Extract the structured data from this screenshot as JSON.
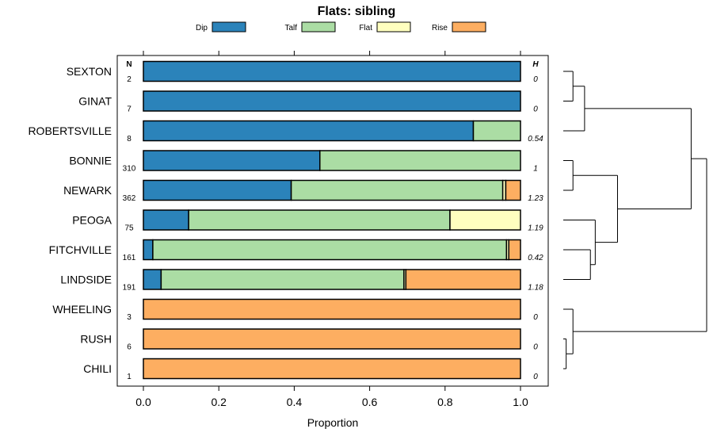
{
  "chart_data": {
    "type": "bar",
    "stacked": true,
    "orientation": "horizontal",
    "title": "Flats: sibling",
    "xlabel": "Proportion",
    "xlim": [
      0,
      1
    ],
    "xticks": [
      "0.0",
      "0.2",
      "0.4",
      "0.6",
      "0.8",
      "1.0"
    ],
    "n_header": "N",
    "h_header": "H",
    "legend": [
      {
        "name": "Dip",
        "color": "#2b83ba"
      },
      {
        "name": "Talf",
        "color": "#abdda4"
      },
      {
        "name": "Flat",
        "color": "#ffffbf"
      },
      {
        "name": "Rise",
        "color": "#fdae61"
      }
    ],
    "categories": [
      "SEXTON",
      "GINAT",
      "ROBERTSVILLE",
      "BONNIE",
      "NEWARK",
      "PEOGA",
      "FITCHVILLE",
      "LINDSIDE",
      "WHEELING",
      "RUSH",
      "CHILI"
    ],
    "n": [
      "2",
      "7",
      "8",
      "310",
      "362",
      "75",
      "161",
      "191",
      "3",
      "6",
      "1"
    ],
    "h": [
      "0",
      "0",
      "0.54",
      "1",
      "1.23",
      "1.19",
      "0.42",
      "1.18",
      "0",
      "0",
      "0"
    ],
    "series": [
      {
        "name": "Dip",
        "values": [
          1.0,
          1.0,
          0.875,
          0.468,
          0.392,
          0.12,
          0.025,
          0.047,
          0,
          0,
          0
        ]
      },
      {
        "name": "Talf",
        "values": [
          0,
          0,
          0.125,
          0.532,
          0.561,
          0.693,
          0.938,
          0.644,
          0,
          0,
          0
        ]
      },
      {
        "name": "Flat",
        "values": [
          0,
          0,
          0,
          0,
          0.008,
          0.187,
          0.006,
          0.005,
          0,
          0,
          0
        ]
      },
      {
        "name": "Rise",
        "values": [
          0,
          0,
          0,
          0,
          0.039,
          0,
          0.031,
          0.304,
          1.0,
          1.0,
          1.0
        ]
      }
    ],
    "dendrogram": [
      {
        "leaves": [
          0,
          1
        ],
        "height": 0.5
      },
      {
        "leaves": [
          0,
          1,
          2
        ],
        "height": 1.1
      },
      {
        "leaves": [
          3,
          4
        ],
        "height": 0.5
      },
      {
        "leaves": [
          6,
          7
        ],
        "height": 1.4
      },
      {
        "leaves": [
          5,
          6,
          7
        ],
        "height": 1.65
      },
      {
        "leaves": [
          3,
          4,
          5,
          6,
          7
        ],
        "height": 2.8
      },
      {
        "leaves": [
          0,
          1,
          2,
          3,
          4,
          5,
          6,
          7
        ],
        "height": 6.6
      },
      {
        "leaves": [
          9,
          10
        ],
        "height": 0.15
      },
      {
        "leaves": [
          8,
          9,
          10
        ],
        "height": 0.5
      },
      {
        "leaves": [
          0,
          1,
          2,
          3,
          4,
          5,
          6,
          7,
          8,
          9,
          10
        ],
        "height": 7.4
      }
    ],
    "dendrogram_max": 7.4
  }
}
